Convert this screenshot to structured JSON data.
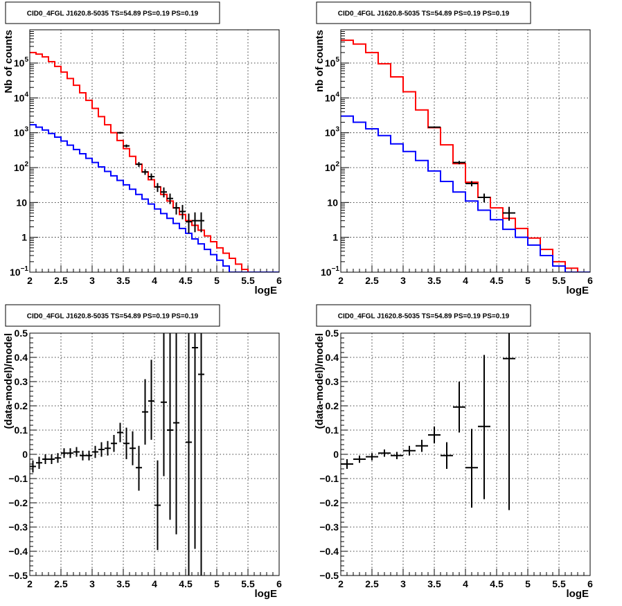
{
  "chart_data": [
    {
      "type": "line",
      "title": "CID0_4FGL J1620.8-5035 TS=54.89 PS=0.19 PS=0.19",
      "xlabel": "logE",
      "ylabel": "Nb of counts",
      "xlim": [
        2,
        6
      ],
      "ylim": [
        0.1,
        900000
      ],
      "yscale": "log",
      "grid": true,
      "xticks": [
        "2",
        "2.5",
        "3",
        "3.5",
        "4",
        "4.5",
        "5",
        "5.5",
        "6"
      ],
      "yticks": [
        {
          "value": 0.1,
          "label": "10",
          "sup": "−1"
        },
        {
          "value": 1,
          "label": "1",
          "sup": ""
        },
        {
          "value": 10,
          "label": "10",
          "sup": ""
        },
        {
          "value": 100,
          "label": "10",
          "sup": "2"
        },
        {
          "value": 1000,
          "label": "10",
          "sup": "3"
        },
        {
          "value": 10000,
          "label": "10",
          "sup": "4"
        },
        {
          "value": 100000,
          "label": "10",
          "sup": "5"
        }
      ],
      "bin_edges": [
        2.0,
        2.1,
        2.2,
        2.3,
        2.4,
        2.5,
        2.6,
        2.7,
        2.8,
        2.9,
        3.0,
        3.1,
        3.2,
        3.3,
        3.4,
        3.5,
        3.6,
        3.7,
        3.8,
        3.9,
        4.0,
        4.1,
        4.2,
        4.3,
        4.4,
        4.5,
        4.6,
        4.7,
        4.8,
        4.9,
        5.0,
        5.1,
        5.2,
        5.3,
        5.4,
        5.5,
        5.6,
        5.7,
        5.8,
        5.9,
        6.0
      ],
      "series": [
        {
          "name": "",
          "color": "#ff0000",
          "style": "step",
          "values": [
            200000,
            180000,
            150000,
            110000,
            80000,
            55000,
            36000,
            23000,
            14000,
            8500,
            5000,
            2900,
            1700,
            1000,
            600,
            350,
            210,
            125,
            75,
            45,
            28,
            17,
            11,
            7,
            4.5,
            3,
            2.2,
            1.6,
            1.1,
            0.75,
            0.5,
            0.35,
            0.25,
            0.17,
            0.12,
            0.1,
            0.1,
            0.1,
            0.1,
            0.1
          ]
        },
        {
          "name": "",
          "color": "#0000ff",
          "style": "step",
          "values": [
            1700,
            1450,
            1200,
            950,
            750,
            580,
            440,
            330,
            250,
            185,
            140,
            105,
            78,
            58,
            43,
            32,
            24,
            17,
            12.5,
            9,
            6.5,
            4.8,
            3.5,
            2.5,
            1.8,
            1.3,
            0.9,
            0.65,
            0.45,
            0.32,
            0.22,
            0.15,
            0.1,
            0.1,
            0.1,
            0.1,
            0.1,
            0.1,
            0.1,
            0.1
          ]
        },
        {
          "name": "",
          "color": "#000000",
          "style": "errorbar",
          "points": [
            {
              "x": 3.45,
              "y": 1000,
              "xerr": 0.05,
              "ylo": 940,
              "yhi": 1060
            },
            {
              "x": 3.55,
              "y": 420,
              "xerr": 0.05,
              "ylo": 380,
              "yhi": 460
            },
            {
              "x": 3.75,
              "y": 125,
              "xerr": 0.05,
              "ylo": 105,
              "yhi": 145
            },
            {
              "x": 3.85,
              "y": 75,
              "xerr": 0.05,
              "ylo": 62,
              "yhi": 90
            },
            {
              "x": 3.95,
              "y": 55,
              "xerr": 0.05,
              "ylo": 44,
              "yhi": 68
            },
            {
              "x": 4.05,
              "y": 28,
              "xerr": 0.05,
              "ylo": 20,
              "yhi": 36
            },
            {
              "x": 4.15,
              "y": 20,
              "xerr": 0.05,
              "ylo": 14,
              "yhi": 27
            },
            {
              "x": 4.25,
              "y": 13,
              "xerr": 0.05,
              "ylo": 9,
              "yhi": 18
            },
            {
              "x": 4.35,
              "y": 7,
              "xerr": 0.05,
              "ylo": 4.5,
              "yhi": 10
            },
            {
              "x": 4.45,
              "y": 5.5,
              "xerr": 0.05,
              "ylo": 3.3,
              "yhi": 8.5
            },
            {
              "x": 4.55,
              "y": 2.8,
              "xerr": 0.05,
              "ylo": 1.3,
              "yhi": 4.8
            },
            {
              "x": 4.65,
              "y": 3.0,
              "xerr": 0.05,
              "ylo": 1.4,
              "yhi": 5.2
            },
            {
              "x": 4.75,
              "y": 3.0,
              "xerr": 0.05,
              "ylo": 1.4,
              "yhi": 5.2
            }
          ]
        }
      ]
    },
    {
      "type": "line",
      "title": "CID0_4FGL J1620.8-5035 TS=54.89 PS=0.19 PS=0.19",
      "xlabel": "logE",
      "ylabel": "nb of counts",
      "xlim": [
        2,
        6
      ],
      "ylim": [
        0.1,
        900000
      ],
      "yscale": "log",
      "grid": true,
      "xticks": [
        "2",
        "2.5",
        "3",
        "3.5",
        "4",
        "4.5",
        "5",
        "5.5",
        "6"
      ],
      "yticks": [
        {
          "value": 0.1,
          "label": "10",
          "sup": "−1"
        },
        {
          "value": 1,
          "label": "1",
          "sup": ""
        },
        {
          "value": 10,
          "label": "10",
          "sup": ""
        },
        {
          "value": 100,
          "label": "10",
          "sup": "2"
        },
        {
          "value": 1000,
          "label": "10",
          "sup": "3"
        },
        {
          "value": 10000,
          "label": "10",
          "sup": "4"
        },
        {
          "value": 100000,
          "label": "10",
          "sup": "5"
        }
      ],
      "bin_edges": [
        2.0,
        2.2,
        2.4,
        2.6,
        2.8,
        3.0,
        3.2,
        3.4,
        3.6,
        3.8,
        4.0,
        4.2,
        4.4,
        4.6,
        4.8,
        5.0,
        5.2,
        5.4,
        5.6,
        5.8,
        6.0
      ],
      "series": [
        {
          "name": "",
          "color": "#ff0000",
          "style": "step",
          "values": [
            450000,
            350000,
            200000,
            95000,
            40000,
            15000,
            4500,
            1400,
            450,
            130,
            38,
            14,
            7,
            3.5,
            1.8,
            0.95,
            0.45,
            0.2,
            0.13,
            0.1
          ]
        },
        {
          "name": "",
          "color": "#0000ff",
          "style": "step",
          "values": [
            3000,
            2000,
            1300,
            830,
            480,
            290,
            160,
            80,
            40,
            20,
            11,
            6,
            3.2,
            1.7,
            1.0,
            0.6,
            0.3,
            0.15,
            0.1,
            0.1
          ]
        },
        {
          "name": "",
          "color": "#000000",
          "style": "errorbar",
          "points": [
            {
              "x": 3.5,
              "y": 1450,
              "xerr": 0.1,
              "ylo": 1370,
              "yhi": 1530
            },
            {
              "x": 3.9,
              "y": 140,
              "xerr": 0.1,
              "ylo": 125,
              "yhi": 155
            },
            {
              "x": 4.1,
              "y": 35,
              "xerr": 0.1,
              "ylo": 29,
              "yhi": 41
            },
            {
              "x": 4.3,
              "y": 14,
              "xerr": 0.1,
              "ylo": 10,
              "yhi": 18
            },
            {
              "x": 4.7,
              "y": 5,
              "xerr": 0.1,
              "ylo": 3,
              "yhi": 7.5
            }
          ]
        }
      ]
    },
    {
      "type": "scatter",
      "title": "CID0_4FGL J1620.8-5035 TS=54.89 PS=0.19 PS=0.19",
      "xlabel": "logE",
      "ylabel": "(data-model)/model",
      "xlim": [
        2,
        6
      ],
      "ylim": [
        -0.5,
        0.5
      ],
      "grid": true,
      "xticks": [
        "2",
        "2.5",
        "3",
        "3.5",
        "4",
        "4.5",
        "5",
        "5.5",
        "6"
      ],
      "yticks": [
        "−0.5",
        "−0.4",
        "−0.3",
        "−0.2",
        "−0.1",
        "0",
        "0.1",
        "0.2",
        "0.3",
        "0.4",
        "0.5"
      ],
      "series": [
        {
          "name": "",
          "color": "#000000",
          "style": "errorbar",
          "points": [
            {
              "x": 2.05,
              "y": -0.05,
              "xerr": 0.05,
              "ylo": -0.075,
              "yhi": -0.025
            },
            {
              "x": 2.15,
              "y": -0.035,
              "xerr": 0.05,
              "ylo": -0.06,
              "yhi": -0.01
            },
            {
              "x": 2.25,
              "y": -0.02,
              "xerr": 0.05,
              "ylo": -0.04,
              "yhi": 0.0
            },
            {
              "x": 2.35,
              "y": -0.02,
              "xerr": 0.05,
              "ylo": -0.04,
              "yhi": 0.0
            },
            {
              "x": 2.45,
              "y": -0.015,
              "xerr": 0.05,
              "ylo": -0.035,
              "yhi": 0.005
            },
            {
              "x": 2.55,
              "y": 0.005,
              "xerr": 0.05,
              "ylo": -0.015,
              "yhi": 0.025
            },
            {
              "x": 2.65,
              "y": 0.005,
              "xerr": 0.05,
              "ylo": -0.015,
              "yhi": 0.025
            },
            {
              "x": 2.75,
              "y": 0.01,
              "xerr": 0.05,
              "ylo": -0.01,
              "yhi": 0.03
            },
            {
              "x": 2.85,
              "y": -0.005,
              "xerr": 0.05,
              "ylo": -0.025,
              "yhi": 0.015
            },
            {
              "x": 2.95,
              "y": -0.005,
              "xerr": 0.05,
              "ylo": -0.025,
              "yhi": 0.015
            },
            {
              "x": 3.05,
              "y": 0.01,
              "xerr": 0.05,
              "ylo": -0.015,
              "yhi": 0.035
            },
            {
              "x": 3.15,
              "y": 0.02,
              "xerr": 0.05,
              "ylo": -0.01,
              "yhi": 0.05
            },
            {
              "x": 3.25,
              "y": 0.025,
              "xerr": 0.05,
              "ylo": -0.005,
              "yhi": 0.055
            },
            {
              "x": 3.35,
              "y": 0.045,
              "xerr": 0.05,
              "ylo": 0.01,
              "yhi": 0.08
            },
            {
              "x": 3.45,
              "y": 0.09,
              "xerr": 0.05,
              "ylo": 0.05,
              "yhi": 0.13
            },
            {
              "x": 3.55,
              "y": 0.045,
              "xerr": 0.05,
              "ylo": -0.02,
              "yhi": 0.11
            },
            {
              "x": 3.65,
              "y": 0.025,
              "xerr": 0.05,
              "ylo": -0.045,
              "yhi": 0.095
            },
            {
              "x": 3.75,
              "y": -0.055,
              "xerr": 0.05,
              "ylo": -0.15,
              "yhi": 0.035
            },
            {
              "x": 3.85,
              "y": 0.175,
              "xerr": 0.05,
              "ylo": 0.04,
              "yhi": 0.31
            },
            {
              "x": 3.95,
              "y": 0.22,
              "xerr": 0.05,
              "ylo": 0.06,
              "yhi": 0.39
            },
            {
              "x": 4.05,
              "y": -0.21,
              "xerr": 0.05,
              "ylo": -0.395,
              "yhi": -0.025
            },
            {
              "x": 4.15,
              "y": 0.215,
              "xerr": 0.05,
              "ylo": -0.09,
              "yhi": 0.52
            },
            {
              "x": 4.25,
              "y": 0.1,
              "xerr": 0.05,
              "ylo": -0.27,
              "yhi": 0.5
            },
            {
              "x": 4.35,
              "y": 0.13,
              "xerr": 0.05,
              "ylo": -0.33,
              "yhi": 0.5
            },
            {
              "x": 4.55,
              "y": 0.05,
              "xerr": 0.05,
              "ylo": -0.52,
              "yhi": 0.52
            },
            {
              "x": 4.65,
              "y": 0.44,
              "xerr": 0.05,
              "ylo": -0.39,
              "yhi": 0.52
            },
            {
              "x": 4.75,
              "y": 0.33,
              "xerr": 0.05,
              "ylo": -0.52,
              "yhi": 0.52
            }
          ]
        }
      ]
    },
    {
      "type": "scatter",
      "title": "CID0_4FGL J1620.8-5035 TS=54.89 PS=0.19 PS=0.19",
      "xlabel": "logE",
      "ylabel": "(data-model)/model",
      "xlim": [
        2,
        6
      ],
      "ylim": [
        -0.5,
        0.5
      ],
      "grid": true,
      "xticks": [
        "2",
        "2.5",
        "3",
        "3.5",
        "4",
        "4.5",
        "5",
        "5.5",
        "6"
      ],
      "yticks": [
        "−0.5",
        "−0.4",
        "−0.3",
        "−0.2",
        "−0.1",
        "0",
        "0.1",
        "0.2",
        "0.3",
        "0.4",
        "0.5"
      ],
      "series": [
        {
          "name": "",
          "color": "#000000",
          "style": "errorbar",
          "points": [
            {
              "x": 2.1,
              "y": -0.04,
              "xerr": 0.1,
              "ylo": -0.06,
              "yhi": -0.02
            },
            {
              "x": 2.3,
              "y": -0.02,
              "xerr": 0.1,
              "ylo": -0.035,
              "yhi": -0.005
            },
            {
              "x": 2.5,
              "y": -0.01,
              "xerr": 0.1,
              "ylo": -0.025,
              "yhi": 0.005
            },
            {
              "x": 2.7,
              "y": 0.005,
              "xerr": 0.1,
              "ylo": -0.01,
              "yhi": 0.02
            },
            {
              "x": 2.9,
              "y": -0.005,
              "xerr": 0.1,
              "ylo": -0.02,
              "yhi": 0.01
            },
            {
              "x": 3.1,
              "y": 0.015,
              "xerr": 0.1,
              "ylo": -0.005,
              "yhi": 0.035
            },
            {
              "x": 3.3,
              "y": 0.035,
              "xerr": 0.1,
              "ylo": 0.01,
              "yhi": 0.06
            },
            {
              "x": 3.5,
              "y": 0.08,
              "xerr": 0.1,
              "ylo": 0.045,
              "yhi": 0.115
            },
            {
              "x": 3.7,
              "y": -0.005,
              "xerr": 0.1,
              "ylo": -0.06,
              "yhi": 0.05
            },
            {
              "x": 3.9,
              "y": 0.195,
              "xerr": 0.1,
              "ylo": 0.09,
              "yhi": 0.3
            },
            {
              "x": 4.1,
              "y": -0.055,
              "xerr": 0.1,
              "ylo": -0.22,
              "yhi": 0.105
            },
            {
              "x": 4.3,
              "y": 0.115,
              "xerr": 0.1,
              "ylo": -0.185,
              "yhi": 0.41
            },
            {
              "x": 4.7,
              "y": 0.395,
              "xerr": 0.1,
              "ylo": -0.23,
              "yhi": 0.52
            }
          ]
        }
      ]
    }
  ]
}
